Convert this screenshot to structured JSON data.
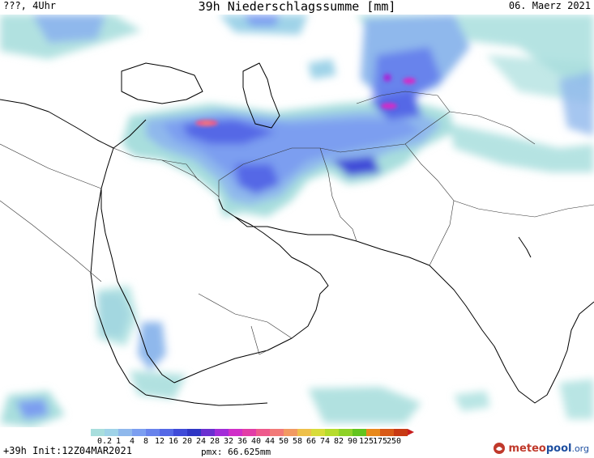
{
  "header": {
    "left": "???, 4Uhr",
    "title": "39h Niederschlagssumme [mm]",
    "right": "06. Maerz 2021"
  },
  "legend": {
    "ticks": [
      "0.2",
      "1",
      "4",
      "8",
      "12",
      "16",
      "20",
      "24",
      "28",
      "32",
      "36",
      "40",
      "44",
      "50",
      "58",
      "66",
      "74",
      "82",
      "90",
      "125",
      "175",
      "250"
    ],
    "colors": [
      "#a8dedd",
      "#9fd3e8",
      "#8fb8ec",
      "#7b9ef0",
      "#6883ec",
      "#5468e6",
      "#3f4bd8",
      "#2f36c4",
      "#6a2fd0",
      "#a22dd8",
      "#d02fc8",
      "#e23da6",
      "#ee5a8c",
      "#f27a78",
      "#f29a62",
      "#eec04a",
      "#d8dc3a",
      "#b6dc2c",
      "#8ed228",
      "#62c41e",
      "#e88a1c",
      "#d85a18",
      "#c83a14"
    ],
    "arrow_color": "#c81e1e"
  },
  "footer": {
    "init": "+39h Init:12Z04MAR2021",
    "pmx": "pmx: 66.625mm"
  },
  "logo": {
    "text_a": "meteo",
    "text_b": "pool",
    "text_c": ".org"
  }
}
